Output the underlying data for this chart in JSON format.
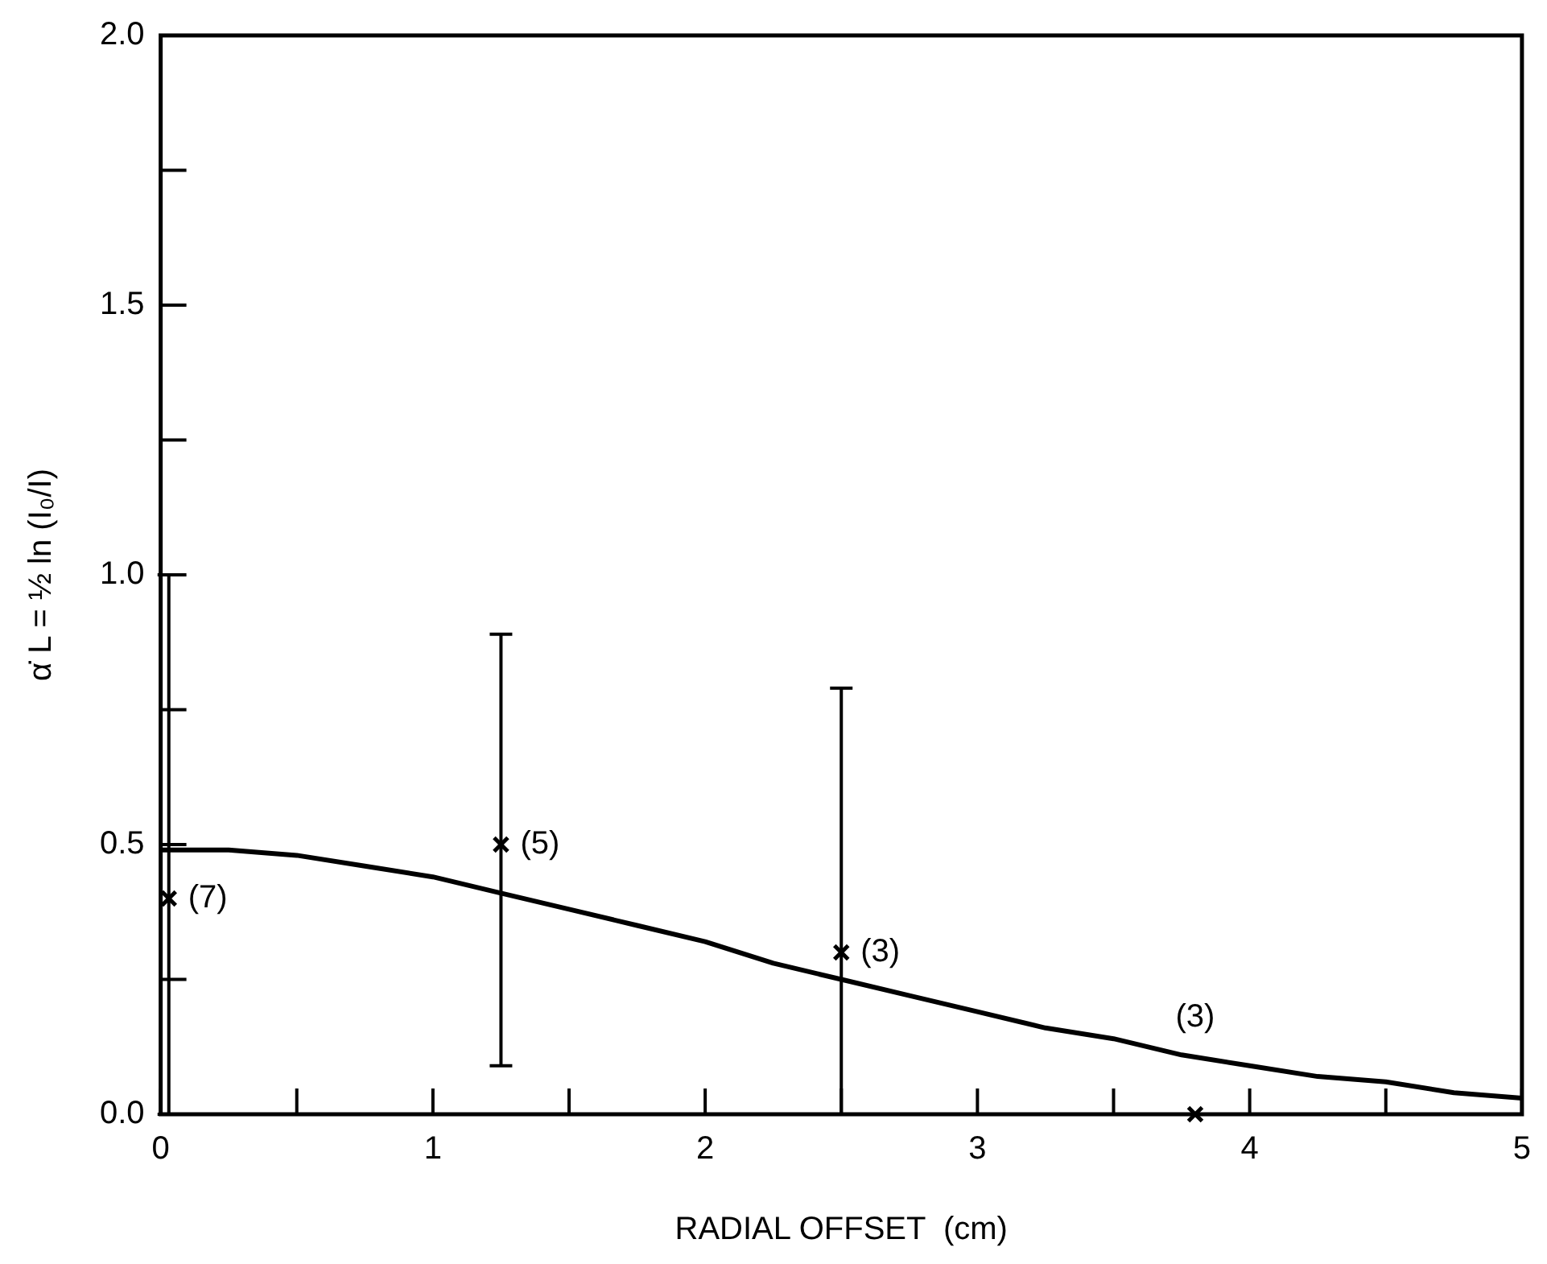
{
  "chart_data": {
    "type": "scatter",
    "xlabel": "RADIAL OFFSET  (cm)",
    "ylabel": "α̇ L = ½ ln (I₀/I)",
    "xlim": [
      0,
      5
    ],
    "ylim": [
      0,
      2
    ],
    "xticks": [
      0,
      {
        "value": 0.5,
        "label": null
      },
      1,
      {
        "value": 1.5,
        "label": null
      },
      2,
      {
        "value": 2.5,
        "label": null
      },
      3,
      {
        "value": 3.5,
        "label": null
      },
      4,
      {
        "value": 4.5,
        "label": null
      },
      5
    ],
    "yticks": [
      {
        "value": 0,
        "label": "0.0"
      },
      {
        "value": 0.25,
        "label": null
      },
      0.5,
      {
        "value": 0.75,
        "label": null
      },
      {
        "value": 1,
        "label": "1.0"
      },
      {
        "value": 1.25,
        "label": null
      },
      1.5,
      {
        "value": 1.75,
        "label": null
      },
      {
        "value": 2,
        "label": "2.0"
      }
    ],
    "grid": false,
    "legend": false,
    "series": [
      {
        "color": "#000000",
        "marker": "cross",
        "x": [
          0.03,
          1.25,
          2.5,
          3.8
        ],
        "values": [
          0.4,
          0.5,
          0.3,
          0.0
        ],
        "errors": [
          [
            0,
            1.0
          ],
          [
            0.09,
            0.89
          ],
          [
            0,
            0.79
          ],
          null
        ]
      },
      {
        "type": "line",
        "color": "#000000",
        "marker": "none",
        "line_style": "solid",
        "x": [
          0,
          0.25,
          0.5,
          0.75,
          1,
          1.25,
          1.5,
          1.75,
          2,
          2.25,
          2.5,
          2.75,
          3,
          3.25,
          3.5,
          3.75,
          4,
          4.25,
          4.5,
          4.75,
          5
        ],
        "values": [
          0.49,
          0.49,
          0.48,
          0.46,
          0.44,
          0.41,
          0.38,
          0.35,
          0.32,
          0.28,
          0.25,
          0.22,
          0.19,
          0.16,
          0.14,
          0.11,
          0.09,
          0.07,
          0.06,
          0.04,
          0.03
        ]
      }
    ],
    "annotations": [
      {
        "text": "(7)",
        "x": 0.03,
        "y": 0.4
      },
      {
        "text": "(5)",
        "x": 1.25,
        "y": 0.5
      },
      {
        "text": "(3)",
        "x": 2.5,
        "y": 0.3
      },
      {
        "text": "(3)",
        "x": 3.8,
        "y": 0
      }
    ]
  }
}
